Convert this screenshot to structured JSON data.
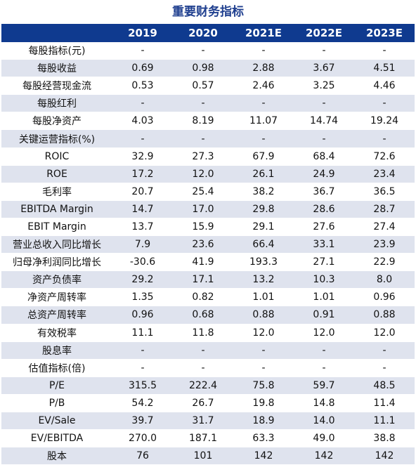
{
  "title": "重要财务指标",
  "header": [
    "",
    "2019",
    "2020",
    "2021E",
    "2022E",
    "2023E"
  ],
  "rows": [
    [
      "每股指标(元)",
      "-",
      "-",
      "-",
      "-",
      "-"
    ],
    [
      "每股收益",
      "0.69",
      "0.98",
      "2.88",
      "3.67",
      "4.51"
    ],
    [
      "每股经营现金流",
      "0.53",
      "0.57",
      "2.46",
      "3.25",
      "4.46"
    ],
    [
      "每股红利",
      "-",
      "-",
      "-",
      "-",
      "-"
    ],
    [
      "每股净资产",
      "4.03",
      "8.19",
      "11.07",
      "14.74",
      "19.24"
    ],
    [
      "关键运营指标(%)",
      "-",
      "-",
      "-",
      "-",
      "-"
    ],
    [
      "ROIC",
      "32.9",
      "27.3",
      "67.9",
      "68.4",
      "72.6"
    ],
    [
      "ROE",
      "17.2",
      "12.0",
      "26.1",
      "24.9",
      "23.4"
    ],
    [
      "毛利率",
      "20.7",
      "25.4",
      "38.2",
      "36.7",
      "36.5"
    ],
    [
      "EBITDA Margin",
      "14.7",
      "17.0",
      "29.8",
      "28.6",
      "28.7"
    ],
    [
      "EBIT  Margin",
      "13.7",
      "15.9",
      "29.1",
      "27.6",
      "27.4"
    ],
    [
      "营业总收入同比增长",
      "7.9",
      "23.6",
      "66.4",
      "33.1",
      "23.9"
    ],
    [
      "归母净利润同比增长",
      "-30.6",
      "41.9",
      "193.3",
      "27.1",
      "22.9"
    ],
    [
      "资产负债率",
      "29.2",
      "17.1",
      "13.2",
      "10.3",
      "8.0"
    ],
    [
      "净资产周转率",
      "1.35",
      "0.82",
      "1.01",
      "1.01",
      "0.96"
    ],
    [
      "总资产周转率",
      "0.96",
      "0.68",
      "0.88",
      "0.91",
      "0.88"
    ],
    [
      "有效税率",
      "11.1",
      "11.8",
      "12.0",
      "12.0",
      "12.0"
    ],
    [
      "股息率",
      "-",
      "-",
      "-",
      "-",
      "-"
    ],
    [
      "估值指标(倍)",
      "-",
      "-",
      "-",
      "-",
      "-"
    ],
    [
      "P/E",
      "315.5",
      "222.4",
      "75.8",
      "59.7",
      "48.5"
    ],
    [
      "P/B",
      "54.2",
      "26.7",
      "19.8",
      "14.8",
      "11.4"
    ],
    [
      "EV/Sale",
      "39.7",
      "31.7",
      "18.9",
      "14.0",
      "11.1"
    ],
    [
      "EV/EBITDA",
      "270.0",
      "187.1",
      "63.3",
      "49.0",
      "38.8"
    ],
    [
      "股本",
      "76",
      "101",
      "142",
      "142",
      "142"
    ]
  ],
  "colors": {
    "header_bg": "#0f3a8f",
    "title": "#1f3f8f",
    "stripe": "#dfe3ee"
  }
}
